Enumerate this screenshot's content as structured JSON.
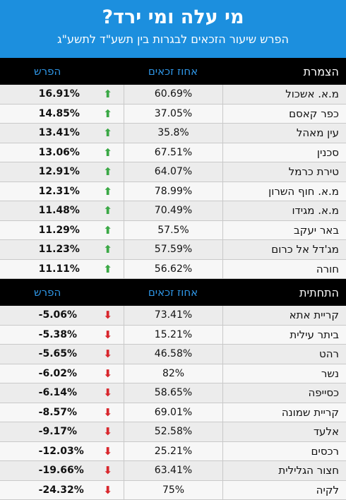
{
  "header": {
    "title": "מי עלה ומי ירד?",
    "subtitle": "הפרש שיעור הזכאים לבגרות בין תשע\"ד לתשע\"ג"
  },
  "columns": {
    "diff": "הפרש",
    "pct": "אחוז זכאים"
  },
  "top": {
    "label": "הצמרת",
    "rows": [
      {
        "name": "מ.א. אשכול",
        "pct": "60.69%",
        "diff": "16.91%"
      },
      {
        "name": "כפר קאסם",
        "pct": "37.05%",
        "diff": "14.85%"
      },
      {
        "name": "עין מאהל",
        "pct": "35.8%",
        "diff": "13.41%"
      },
      {
        "name": "סכנין",
        "pct": "67.51%",
        "diff": "13.06%"
      },
      {
        "name": "טירת כרמל",
        "pct": "64.07%",
        "diff": "12.91%"
      },
      {
        "name": "מ.א. חוף השרון",
        "pct": "78.99%",
        "diff": "12.31%"
      },
      {
        "name": "מ.א. מגידו",
        "pct": "70.49%",
        "diff": "11.48%"
      },
      {
        "name": "באר יעקב",
        "pct": "57.5%",
        "diff": "11.29%"
      },
      {
        "name": "מג'דל אל כרום",
        "pct": "57.59%",
        "diff": "11.23%"
      },
      {
        "name": "חורה",
        "pct": "56.62%",
        "diff": "11.11%"
      }
    ]
  },
  "bottom": {
    "label": "התחתית",
    "rows": [
      {
        "name": "קריית אתא",
        "pct": "73.41%",
        "diff": "-5.06%"
      },
      {
        "name": "ביתר עילית",
        "pct": "15.21%",
        "diff": "-5.38%"
      },
      {
        "name": "רהט",
        "pct": "46.58%",
        "diff": "-5.65%"
      },
      {
        "name": "נשר",
        "pct": "82%",
        "diff": "-6.02%"
      },
      {
        "name": "כסייפה",
        "pct": "58.65%",
        "diff": "-6.14%"
      },
      {
        "name": "קריית שמונה",
        "pct": "69.01%",
        "diff": "-8.57%"
      },
      {
        "name": "אלעד",
        "pct": "52.58%",
        "diff": "-9.17%"
      },
      {
        "name": "רכסים",
        "pct": "25.21%",
        "diff": "-12.03%"
      },
      {
        "name": "חצור הגלילית",
        "pct": "63.41%",
        "diff": "-19.66%"
      },
      {
        "name": "לקיה",
        "pct": "75%",
        "diff": "-24.32%"
      }
    ]
  },
  "icons": {
    "up": "arrow-up-icon",
    "down": "arrow-down-icon"
  },
  "colors": {
    "header_bg": "#1c8fde",
    "up": "#3aa845",
    "down": "#d8262c",
    "column_header": "#2f96e6"
  }
}
